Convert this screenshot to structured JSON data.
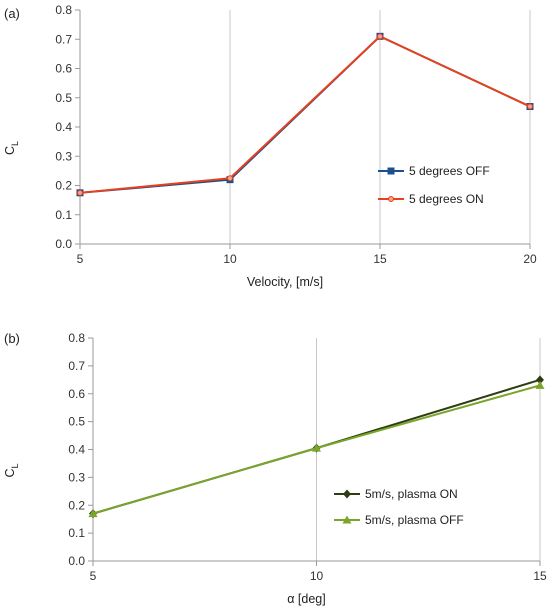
{
  "chart_data": [
    {
      "panel_label": "(a)",
      "type": "line",
      "xlabel": "Velocity, [m/s]",
      "ylabel_main": "C",
      "ylabel_sub": "L",
      "x": [
        5,
        10,
        15,
        20
      ],
      "xticks": [
        "5",
        "10",
        "15",
        "20"
      ],
      "xlim": [
        5,
        20
      ],
      "ylim": [
        0,
        0.8
      ],
      "yticks": [
        "0.0",
        "0.1",
        "0.2",
        "0.3",
        "0.4",
        "0.5",
        "0.6",
        "0.7",
        "0.8"
      ],
      "grid": "vertical",
      "legend_position": "right",
      "series": [
        {
          "name": "5 degrees OFF",
          "values": [
            0.175,
            0.22,
            0.71,
            0.47
          ],
          "color": "#1f4e8c",
          "marker": "square"
        },
        {
          "name": "5 degrees ON",
          "values": [
            0.175,
            0.225,
            0.71,
            0.47
          ],
          "color": "#e8401c",
          "marker": "circle"
        }
      ]
    },
    {
      "panel_label": "(b)",
      "type": "line",
      "xlabel": "α [deg]",
      "ylabel_main": "C",
      "ylabel_sub": "L",
      "x": [
        5,
        10,
        15
      ],
      "xticks": [
        "5",
        "10",
        "15"
      ],
      "xlim": [
        5,
        15
      ],
      "ylim": [
        0,
        0.8
      ],
      "yticks": [
        "0.0",
        "0.1",
        "0.2",
        "0.3",
        "0.4",
        "0.5",
        "0.6",
        "0.7",
        "0.8"
      ],
      "grid": "vertical",
      "legend_position": "bottom-right",
      "series": [
        {
          "name": "5m/s, plasma ON",
          "values": [
            0.17,
            0.405,
            0.65
          ],
          "color": "#2e3d12",
          "marker": "diamond"
        },
        {
          "name": "5m/s, plasma OFF",
          "values": [
            0.17,
            0.405,
            0.63
          ],
          "color": "#7aa42a",
          "marker": "triangle"
        }
      ]
    }
  ]
}
